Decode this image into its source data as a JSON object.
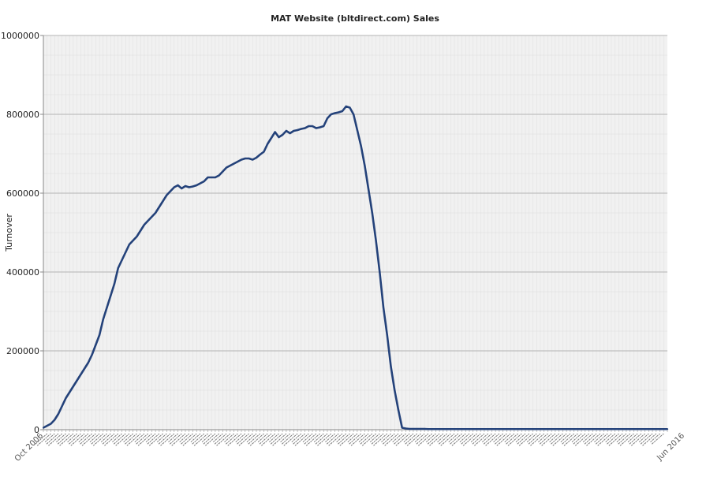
{
  "chart_data": {
    "type": "line",
    "title": "MAT Website (bltdirect.com) Sales",
    "xlabel": "",
    "ylabel": "Turnover",
    "ylim": [
      0,
      1000000
    ],
    "yticks": [
      0,
      200000,
      400000,
      600000,
      800000,
      1000000
    ],
    "ytick_labels": [
      "0",
      "200000",
      "400000",
      "600000",
      "800000",
      "1000000"
    ],
    "grid": true,
    "legend": "none",
    "x_first_label": "Oct 2006",
    "x_last_label": "Jun 2016",
    "x_label_note": "x tick labels are dense, rotated and overlapping; individual month labels are not legible",
    "series": [
      {
        "name": "Turnover",
        "color": "#24427a",
        "values": [
          5000,
          10000,
          15000,
          25000,
          40000,
          60000,
          80000,
          95000,
          110000,
          125000,
          140000,
          155000,
          170000,
          190000,
          215000,
          240000,
          280000,
          310000,
          340000,
          370000,
          410000,
          430000,
          450000,
          470000,
          480000,
          490000,
          505000,
          520000,
          530000,
          540000,
          550000,
          565000,
          580000,
          595000,
          605000,
          615000,
          620000,
          612000,
          618000,
          615000,
          617000,
          620000,
          625000,
          630000,
          640000,
          640000,
          640000,
          645000,
          655000,
          665000,
          670000,
          675000,
          680000,
          685000,
          688000,
          688000,
          685000,
          690000,
          698000,
          705000,
          725000,
          740000,
          755000,
          742000,
          748000,
          758000,
          752000,
          758000,
          760000,
          763000,
          765000,
          770000,
          770000,
          765000,
          767000,
          770000,
          790000,
          800000,
          803000,
          805000,
          808000,
          820000,
          817000,
          800000,
          760000,
          720000,
          670000,
          610000,
          550000,
          480000,
          400000,
          310000,
          240000,
          160000,
          100000,
          50000,
          5000,
          3000,
          2000,
          2000,
          2000,
          2000,
          2000,
          1500,
          1500,
          1500,
          1500,
          1500,
          1500,
          1500,
          1500,
          1500,
          1500,
          1500,
          1500,
          1500,
          1500,
          1500,
          1500,
          1500,
          1500,
          1500,
          1500,
          1500,
          1500,
          1500,
          1500,
          1500,
          1500,
          1500,
          1500,
          1500,
          1500,
          1500,
          1500,
          1500,
          1500,
          1500,
          1500,
          1500,
          1500,
          1500,
          1500,
          1500,
          1500,
          1500,
          1500,
          1500,
          1500,
          1500,
          1500,
          1500,
          1500,
          1500,
          1500,
          1500,
          1500,
          1500,
          1500,
          1500,
          1500,
          1500,
          1500,
          1500,
          1500,
          1500,
          1500,
          1500
        ]
      }
    ]
  }
}
